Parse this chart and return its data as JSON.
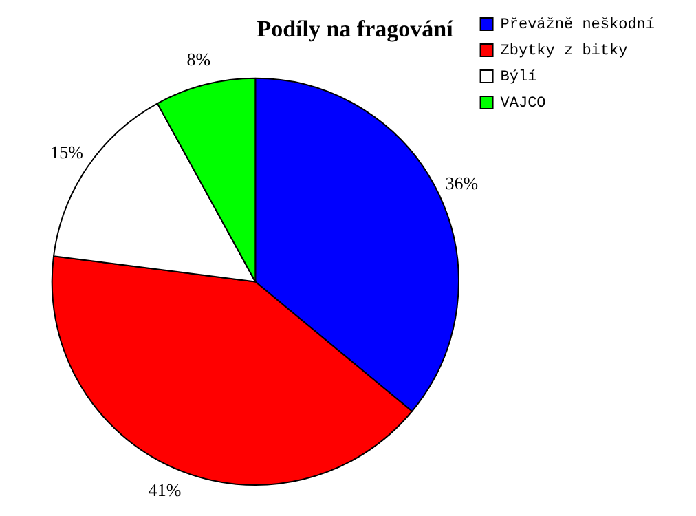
{
  "chart_data": {
    "type": "pie",
    "title": "Podíly na fragování",
    "categories": [
      "Převážně neškodní",
      "Zbytky z bitky",
      "Býlí",
      "VAJCO"
    ],
    "values": [
      36,
      41,
      15,
      8
    ],
    "value_labels": [
      "36%",
      "41%",
      "15%",
      "8%"
    ],
    "colors": [
      "#0000ff",
      "#ff0000",
      "#ffffff",
      "#00ff00"
    ],
    "legend": "top right"
  }
}
